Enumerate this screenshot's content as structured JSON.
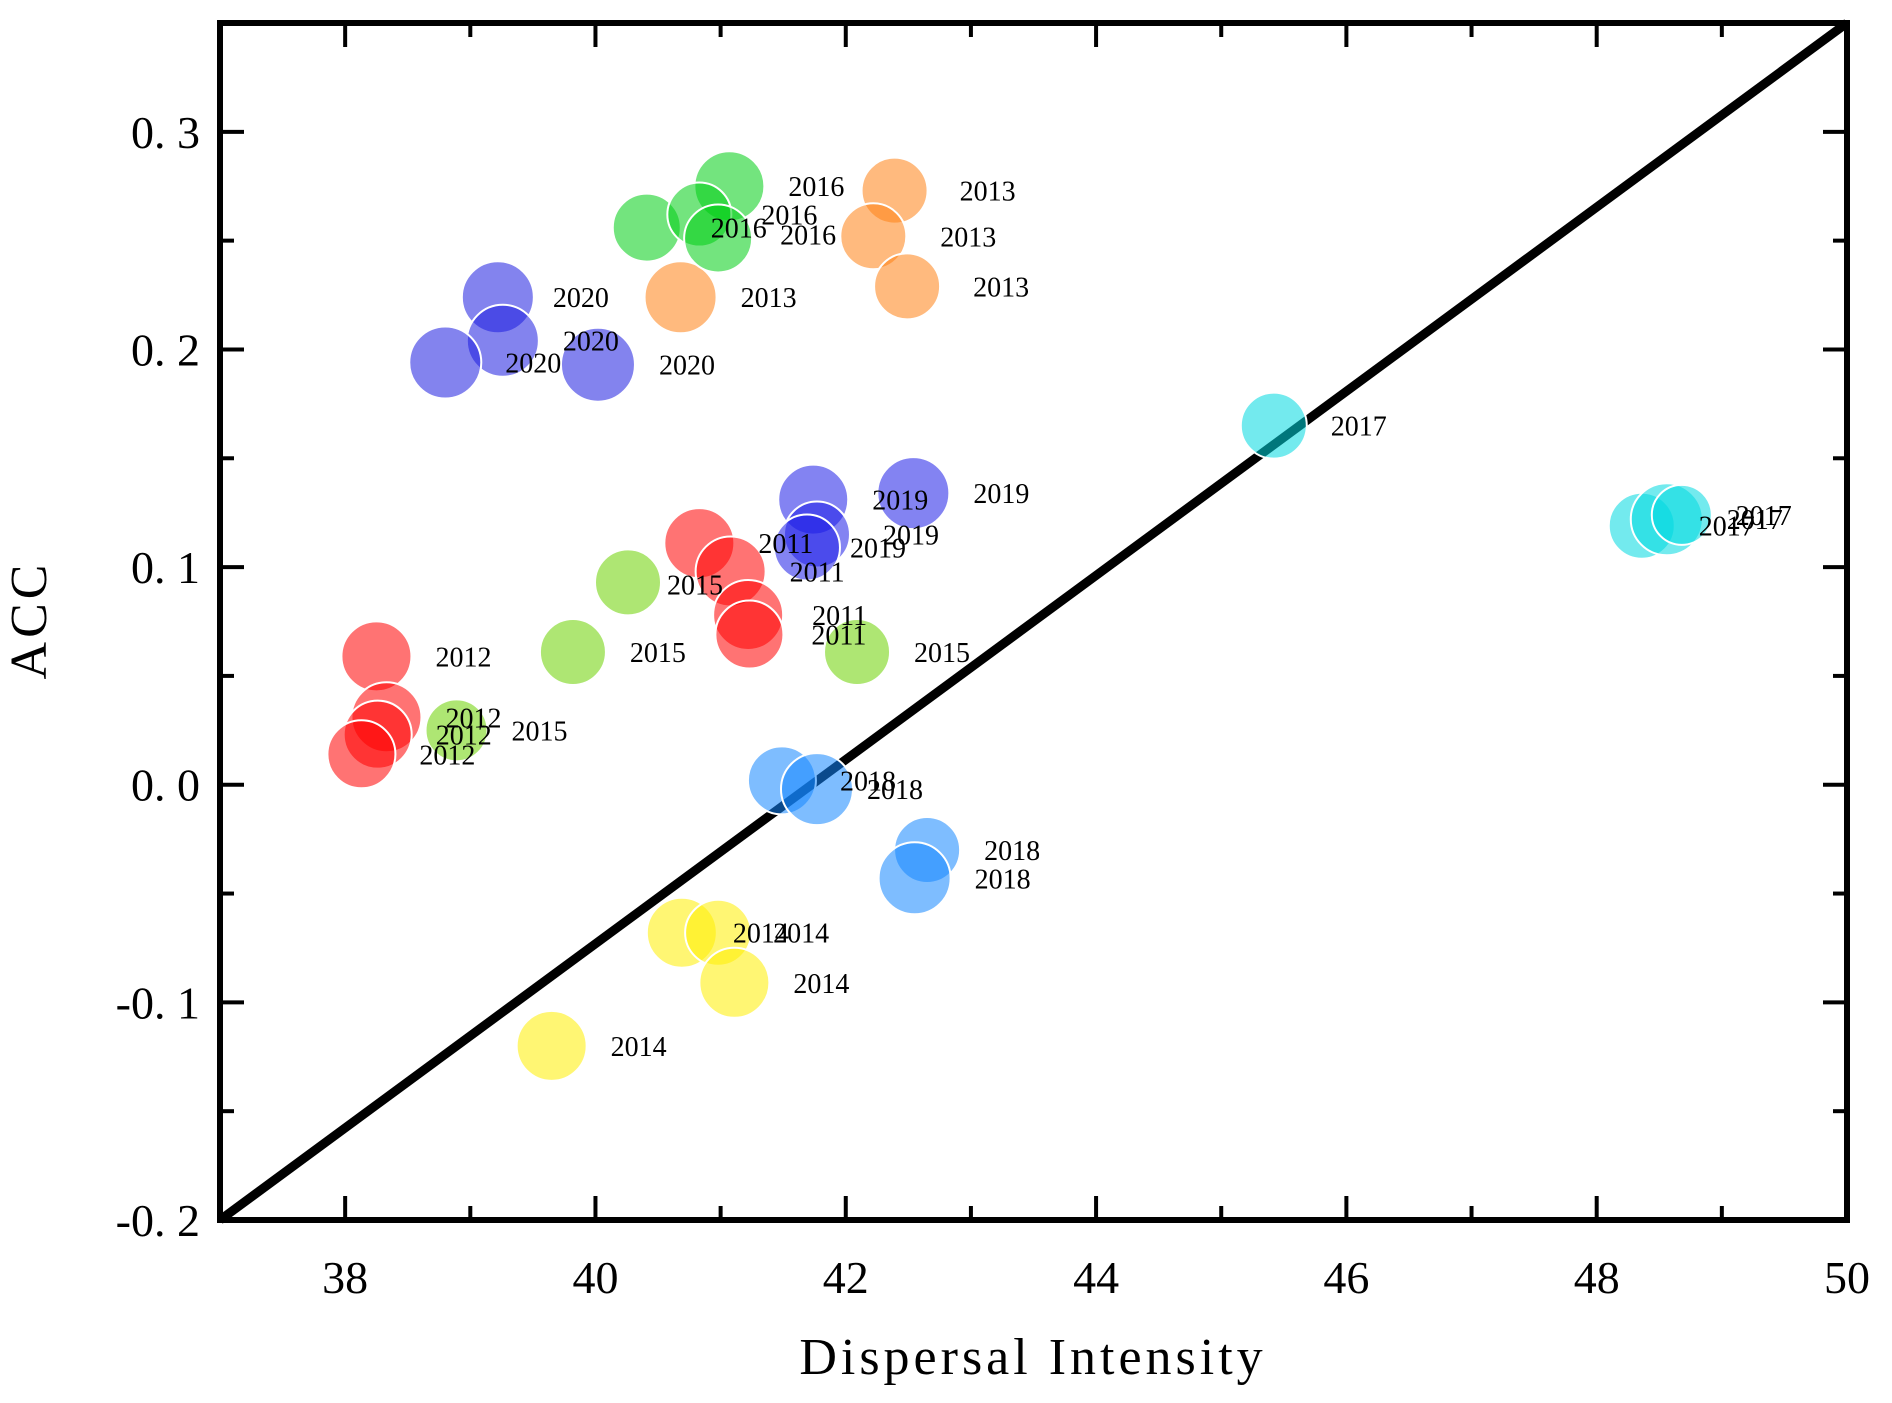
{
  "chart_data": {
    "type": "scatter",
    "title": "",
    "xlabel": "Dispersal Intensity",
    "ylabel": "ACC",
    "xlim": [
      37,
      50
    ],
    "ylim": [
      -0.2,
      0.35
    ],
    "x_major_ticks": [
      38,
      40,
      42,
      44,
      46,
      48,
      50
    ],
    "x_tick_labels": [
      "38",
      "40",
      "42",
      "44",
      "46",
      "48",
      "50"
    ],
    "x_minor_ticks": [
      39,
      41,
      43,
      45,
      47,
      49
    ],
    "y_major_ticks": [
      0.3,
      0.2,
      0.1,
      0.0,
      -0.1,
      -0.2
    ],
    "y_tick_labels": [
      "0. 3",
      "0. 2",
      "0. 1",
      "0. 0",
      "-0. 1",
      "-0. 2"
    ],
    "y_minor_ticks": [
      0.25,
      0.15,
      0.05,
      -0.05,
      -0.15
    ],
    "grid": false,
    "legend_position": "none",
    "frame_color": "#000000",
    "reference_line": {
      "from": [
        37,
        -0.2
      ],
      "to": [
        50,
        0.35
      ],
      "color": "#000000"
    },
    "bubble_alpha": 0.55,
    "bubble_edge_color": "#ffffff",
    "series": [
      {
        "name": "2011",
        "color": "#FF0000",
        "points": [
          {
            "x": 40.83,
            "y": 0.111,
            "r": 35
          },
          {
            "x": 41.08,
            "y": 0.098,
            "r": 35
          },
          {
            "x": 41.22,
            "y": 0.078,
            "r": 35,
            "ldx": 64
          },
          {
            "x": 41.23,
            "y": 0.069,
            "r": 34,
            "ldx": 62
          }
        ]
      },
      {
        "name": "2012",
        "color": "#FF0000",
        "points": [
          {
            "x": 38.25,
            "y": 0.059,
            "r": 35
          },
          {
            "x": 38.33,
            "y": 0.031,
            "r": 35
          },
          {
            "x": 38.26,
            "y": 0.023,
            "r": 34
          },
          {
            "x": 38.13,
            "y": 0.014,
            "r": 34
          }
        ]
      },
      {
        "name": "2013",
        "color": "#FF8214",
        "points": [
          {
            "x": 40.68,
            "y": 0.224,
            "r": 36
          },
          {
            "x": 42.39,
            "y": 0.273,
            "r": 33,
            "ldx": 65
          },
          {
            "x": 42.22,
            "y": 0.252,
            "r": 33,
            "ldx": 67
          },
          {
            "x": 42.49,
            "y": 0.229,
            "r": 33,
            "ldx": 66
          }
        ]
      },
      {
        "name": "2014",
        "color": "#FFEF00",
        "points": [
          {
            "x": 40.69,
            "y": -0.068,
            "r": 35,
            "ldx": 51
          },
          {
            "x": 40.98,
            "y": -0.068,
            "r": 33,
            "ldx": 55
          },
          {
            "x": 41.11,
            "y": -0.091,
            "r": 35
          },
          {
            "x": 39.65,
            "y": -0.12,
            "r": 35
          }
        ]
      },
      {
        "name": "2015",
        "color": "#6CD100",
        "points": [
          {
            "x": 40.26,
            "y": 0.093,
            "r": 33,
            "ldx": 39,
            "ldy": 12
          },
          {
            "x": 39.82,
            "y": 0.061,
            "r": 33
          },
          {
            "x": 38.89,
            "y": 0.025,
            "r": 31
          },
          {
            "x": 42.09,
            "y": 0.061,
            "r": 33
          }
        ]
      },
      {
        "name": "2016",
        "color": "#00CD14",
        "points": [
          {
            "x": 41.07,
            "y": 0.275,
            "r": 35
          },
          {
            "x": 40.41,
            "y": 0.256,
            "r": 34,
            "ldx": 64
          },
          {
            "x": 40.83,
            "y": 0.262,
            "r": 32,
            "ldx": 62
          },
          {
            "x": 40.98,
            "y": 0.251,
            "r": 34,
            "ldx": 62,
            "ldy": 6
          }
        ]
      },
      {
        "name": "2017",
        "color": "#00D9E0",
        "points": [
          {
            "x": 45.42,
            "y": 0.165,
            "r": 33
          },
          {
            "x": 48.36,
            "y": 0.119,
            "r": 33
          },
          {
            "x": 48.56,
            "y": 0.122,
            "r": 36
          },
          {
            "x": 48.68,
            "y": 0.124,
            "r": 30
          }
        ]
      },
      {
        "name": "2018",
        "color": "#1487FF",
        "points": [
          {
            "x": 41.49,
            "y": 0.002,
            "r": 34
          },
          {
            "x": 41.77,
            "y": -0.002,
            "r": 36,
            "ldx": 50
          },
          {
            "x": 42.65,
            "y": -0.03,
            "r": 33
          },
          {
            "x": 42.55,
            "y": -0.043,
            "r": 36
          }
        ]
      },
      {
        "name": "2019",
        "color": "#1E1EE8",
        "points": [
          {
            "x": 41.74,
            "y": 0.131,
            "r": 35
          },
          {
            "x": 42.54,
            "y": 0.134,
            "r": 36
          },
          {
            "x": 41.77,
            "y": 0.115,
            "r": 33,
            "ldx": 66
          },
          {
            "x": 41.69,
            "y": 0.109,
            "r": 33,
            "ldx": 43
          }
        ]
      },
      {
        "name": "2020",
        "color": "#1E1EE0",
        "points": [
          {
            "x": 39.22,
            "y": 0.224,
            "r": 36,
            "ldx": 55
          },
          {
            "x": 39.26,
            "y": 0.204,
            "r": 36
          },
          {
            "x": 38.8,
            "y": 0.194,
            "r": 36
          },
          {
            "x": 40.02,
            "y": 0.193,
            "r": 37
          }
        ]
      }
    ]
  }
}
